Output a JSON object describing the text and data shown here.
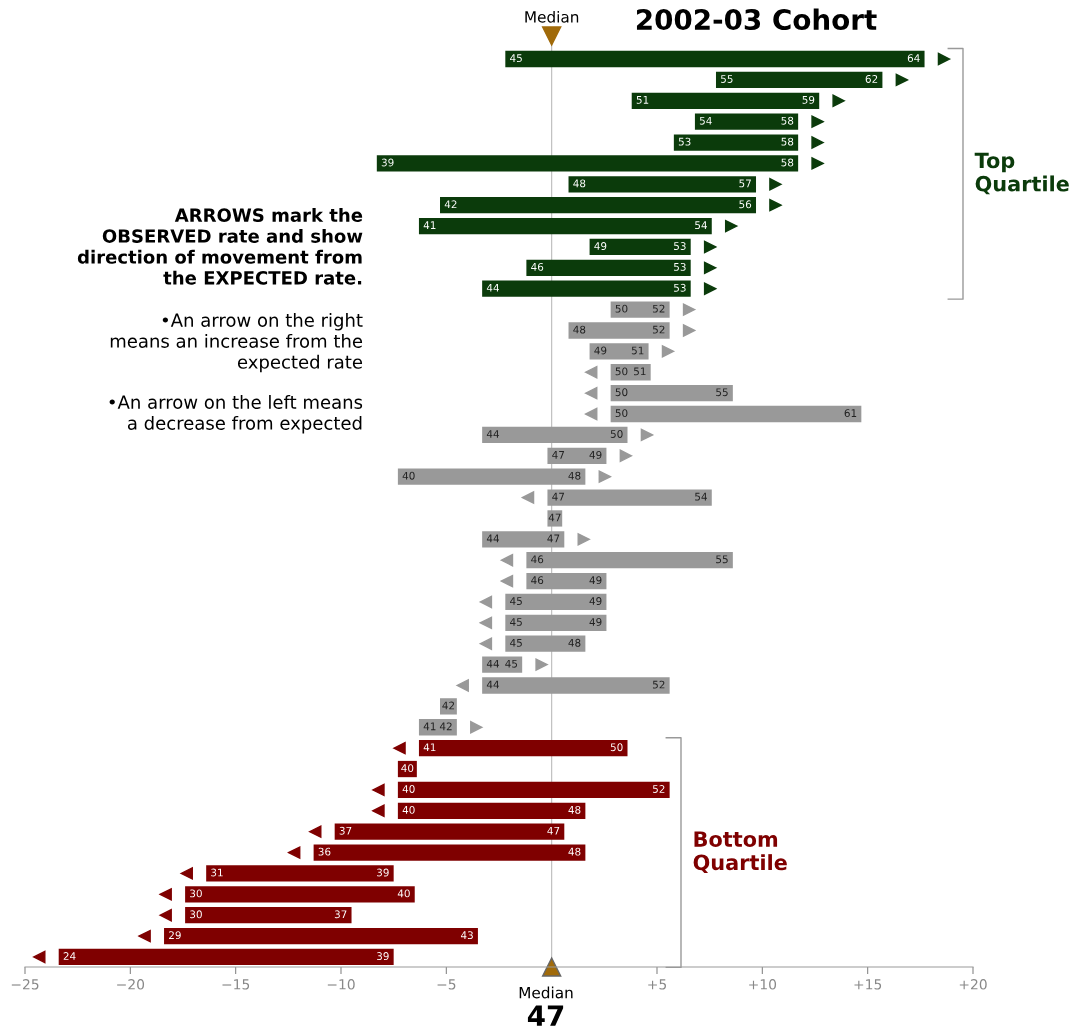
{
  "chart_data": {
    "type": "bar",
    "orientation": "horizontal",
    "title": "2002-03 Cohort",
    "categories": [
      null,
      null,
      null,
      null,
      null,
      null,
      null,
      null,
      null,
      null,
      null,
      null,
      null,
      null,
      null,
      null,
      null,
      null,
      null,
      null,
      null,
      null,
      null,
      null,
      null,
      null,
      null,
      null,
      null,
      null,
      null,
      null,
      null,
      null,
      null,
      null,
      null,
      null,
      null,
      null,
      null,
      null,
      null,
      null
    ],
    "base": [
      -2.2,
      7.8,
      3.8,
      6.8,
      5.8,
      -8.3,
      0.8,
      -5.3,
      -6.3,
      1.8,
      -1.2,
      -3.3,
      2.8,
      0.8,
      1.8,
      4.7,
      8.6,
      14.7,
      -3.3,
      -0.2,
      -7.3,
      7.6,
      -0.2,
      -3.3,
      8.6,
      2.6,
      2.6,
      2.6,
      1.6,
      -3.3,
      5.6,
      -5.3,
      -6.3,
      3.6,
      -7.3,
      5.6,
      1.6,
      0.6,
      1.6,
      -7.5,
      -6.5,
      -9.5,
      -3.5,
      -7.5
    ],
    "values": [
      19.9,
      7.9,
      8.9,
      4.9,
      5.9,
      20.0,
      8.9,
      15.0,
      13.9,
      4.8,
      7.8,
      9.9,
      2.8,
      4.8,
      2.8,
      -1.9,
      -5.8,
      -11.9,
      6.9,
      2.8,
      8.9,
      -7.8,
      0.7,
      3.9,
      -9.8,
      -3.8,
      -4.8,
      -4.8,
      -3.8,
      1.9,
      -8.9,
      0.8,
      1.8,
      -9.9,
      0.9,
      -12.9,
      -8.9,
      -10.9,
      -12.9,
      -8.9,
      -10.9,
      -7.9,
      -14.9,
      -15.9
    ],
    "value_labels": [
      [
        "45",
        "64"
      ],
      [
        "55",
        "62"
      ],
      [
        "51",
        "59"
      ],
      [
        "54",
        "58"
      ],
      [
        "53",
        "58"
      ],
      [
        "39",
        "58"
      ],
      [
        "48",
        "57"
      ],
      [
        "42",
        "56"
      ],
      [
        "41",
        "54"
      ],
      [
        "49",
        "53"
      ],
      [
        "46",
        "53"
      ],
      [
        "44",
        "53"
      ],
      [
        "50",
        "52"
      ],
      [
        "48",
        "52"
      ],
      [
        "49",
        "51"
      ],
      [
        "50",
        "51"
      ],
      [
        "50",
        "55"
      ],
      [
        "50",
        "61"
      ],
      [
        "44",
        "50"
      ],
      [
        "47",
        "49"
      ],
      [
        "40",
        "48"
      ],
      [
        "47",
        "54"
      ],
      [
        "47"
      ],
      [
        "44",
        "47"
      ],
      [
        "46",
        "55"
      ],
      [
        "46",
        "49"
      ],
      [
        "45",
        "49"
      ],
      [
        "45",
        "49"
      ],
      [
        "45",
        "48"
      ],
      [
        "44",
        "45"
      ],
      [
        "44",
        "52"
      ],
      [
        "42"
      ],
      [
        "41",
        "42"
      ],
      [
        "41",
        "50"
      ],
      [
        "40"
      ],
      [
        "40",
        "52"
      ],
      [
        "40",
        "48"
      ],
      [
        "37",
        "47"
      ],
      [
        "36",
        "48"
      ],
      [
        "31",
        "39"
      ],
      [
        "30",
        "40"
      ],
      [
        "30",
        "37"
      ],
      [
        "29",
        "43"
      ],
      [
        "24",
        "39"
      ]
    ],
    "colors": [
      "#0b3b0b",
      "#0b3b0b",
      "#0b3b0b",
      "#0b3b0b",
      "#0b3b0b",
      "#0b3b0b",
      "#0b3b0b",
      "#0b3b0b",
      "#0b3b0b",
      "#0b3b0b",
      "#0b3b0b",
      "#0b3b0b",
      "#999999",
      "#999999",
      "#999999",
      "#999999",
      "#999999",
      "#999999",
      "#999999",
      "#999999",
      "#999999",
      "#999999",
      "#999999",
      "#999999",
      "#999999",
      "#999999",
      "#999999",
      "#999999",
      "#999999",
      "#999999",
      "#999999",
      "#999999",
      "#999999",
      "#7f0000",
      "#7f0000",
      "#7f0000",
      "#7f0000",
      "#7f0000",
      "#7f0000",
      "#7f0000",
      "#7f0000",
      "#7f0000",
      "#7f0000",
      "#7f0000"
    ],
    "xlim": [
      -25,
      20
    ],
    "xticks": [
      {
        "value": -25,
        "label": "−25"
      },
      {
        "value": -20,
        "label": "−20"
      },
      {
        "value": -15,
        "label": "−15"
      },
      {
        "value": -10,
        "label": "−10"
      },
      {
        "value": -5,
        "label": "−5"
      },
      {
        "value": 0,
        "label": null
      },
      {
        "value": 5,
        "label": "+5"
      },
      {
        "value": 10,
        "label": "+10"
      },
      {
        "value": 15,
        "label": "+15"
      },
      {
        "value": 20,
        "label": "+20"
      }
    ],
    "tick_labels": "x",
    "ref_lines": [
      {
        "axis": "x",
        "value": 0,
        "label": "Median",
        "color": "#bbbbbb"
      }
    ],
    "annotations": [
      "Top\nQuartile",
      "Bottom\nQuartile",
      "Median",
      "47",
      "ARROWS mark the\nOBSERVED rate and show\ndirection of movement from\nthe EXPECTED rate.",
      "•An arrow on the right\nmeans an increase from the\nexpected rate",
      "•An arrow on the left means\na decrease from expected"
    ]
  }
}
